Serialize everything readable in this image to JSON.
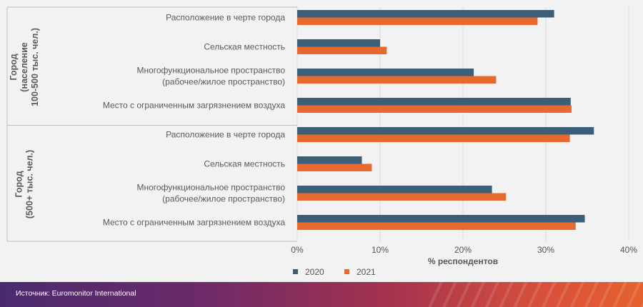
{
  "chart_data": {
    "type": "bar",
    "orientation": "horizontal",
    "xlabel": "% респондентов",
    "xlim": [
      0,
      40
    ],
    "xticks": [
      "0%",
      "10%",
      "20%",
      "30%",
      "40%"
    ],
    "gridlines": true,
    "legend_position": "bottom-left",
    "groups": [
      {
        "label": "Город\n(население\n100-500 тыс. чел.)",
        "label_lines": [
          "Город",
          "(население",
          "100-500 тыс. чел.)"
        ],
        "categories": [
          {
            "label_lines": [
              "Расположение в черте города"
            ]
          },
          {
            "label_lines": [
              "Сельская местность"
            ]
          },
          {
            "label_lines": [
              "Многофункциональное пространство",
              "(рабочее/жилое пространство)"
            ]
          },
          {
            "label_lines": [
              "Место с ограниченным загрязнением воздуха"
            ]
          }
        ]
      },
      {
        "label": "Город\n(500+ тыс. чел.)",
        "label_lines": [
          "Город",
          "(500+ тыс. чел.)"
        ],
        "categories": [
          {
            "label_lines": [
              "Расположение в черте города"
            ]
          },
          {
            "label_lines": [
              "Сельская местность"
            ]
          },
          {
            "label_lines": [
              "Многофункциональное пространство",
              "(рабочее/жилое пространство)"
            ]
          },
          {
            "label_lines": [
              "Место с ограниченным загрязнением воздуха"
            ]
          }
        ]
      }
    ],
    "series": [
      {
        "name": "2020",
        "color": "#3b5f78",
        "values": [
          31.0,
          10.0,
          21.3,
          33.0,
          35.8,
          7.8,
          23.5,
          34.7
        ]
      },
      {
        "name": "2021",
        "color": "#e8692d",
        "values": [
          29.0,
          10.8,
          24.0,
          33.1,
          32.9,
          9.0,
          25.2,
          33.6
        ]
      }
    ]
  },
  "footer": {
    "source": "Источник: Euromonitor International"
  }
}
